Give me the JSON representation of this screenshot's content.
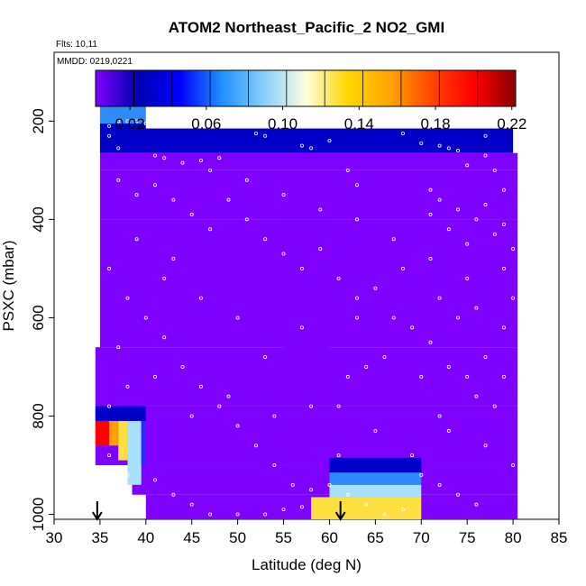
{
  "chart_data": {
    "type": "heatmap",
    "title": "ATOM2 Northeast_Pacific_2 NO2_GMI",
    "flights_label": "Flts: 10,11",
    "dates_label": "MMDD: 0219,0221",
    "xlabel": "Latitude (deg N)",
    "ylabel": "PSXC (mbar)",
    "xlim": [
      30,
      85
    ],
    "ylim": [
      1010,
      60
    ],
    "y_reversed": true,
    "xticks": [
      "30",
      "35",
      "40",
      "45",
      "50",
      "55",
      "60",
      "65",
      "70",
      "75",
      "80",
      "85"
    ],
    "xtick_values": [
      30,
      35,
      40,
      45,
      50,
      55,
      60,
      65,
      70,
      75,
      80,
      85
    ],
    "yticks": [
      "200",
      "400",
      "600",
      "800",
      "1000"
    ],
    "ytick_values": [
      200,
      400,
      600,
      800,
      1000
    ],
    "colorbar": {
      "min": 0.002,
      "max": 0.222,
      "tick_labels": [
        "0.02",
        "0.06",
        "0.10",
        "0.14",
        "0.18",
        "0.22"
      ],
      "tick_values": [
        0.02,
        0.06,
        0.1,
        0.14,
        0.18,
        0.22
      ],
      "boundaries": [
        0.002,
        0.022,
        0.042,
        0.062,
        0.082,
        0.102,
        0.122,
        0.142,
        0.162,
        0.182,
        0.202,
        0.222
      ],
      "colors": [
        "#7f00ff",
        "#0000c8",
        "#2828ff",
        "#2c8cff",
        "#a8e0ff",
        "#ffffd0",
        "#ffe040",
        "#ffa000",
        "#ff5000",
        "#ff0000",
        "#b00000"
      ]
    },
    "field_cells": [
      {
        "lat": [
          35.0,
          40.0
        ],
        "p": [
          165,
          205
        ],
        "v": 0.07
      },
      {
        "lat": [
          35.0,
          40.0
        ],
        "p": [
          205,
          215
        ],
        "v": 0.03
      },
      {
        "lat": [
          35.0,
          80.0
        ],
        "p": [
          215,
          265
        ],
        "v": 0.026
      },
      {
        "lat": [
          35.0,
          80.5
        ],
        "p": [
          265,
          300
        ],
        "v": 0.02
      },
      {
        "lat": [
          35.0,
          80.5
        ],
        "p": [
          300,
          400
        ],
        "v": 0.014
      },
      {
        "lat": [
          35.0,
          80.5
        ],
        "p": [
          400,
          660
        ],
        "v": 0.009
      },
      {
        "lat": [
          34.5,
          80.5
        ],
        "p": [
          660,
          780
        ],
        "v": 0.011
      },
      {
        "lat": [
          34.5,
          80.5
        ],
        "p": [
          780,
          900
        ],
        "v": 0.009
      },
      {
        "lat": [
          38.5,
          80.5
        ],
        "p": [
          900,
          960
        ],
        "v": 0.013
      },
      {
        "lat": [
          40.0,
          80.5
        ],
        "p": [
          960,
          1010
        ],
        "v": 0.015
      },
      {
        "lat": [
          34.5,
          40.0
        ],
        "p": [
          780,
          810
        ],
        "v": 0.03
      },
      {
        "lat": [
          55.0,
          60.0
        ],
        "p": [
          400,
          700
        ],
        "v": 0.02
      },
      {
        "lat": [
          60.0,
          70.0
        ],
        "p": [
          885,
          915
        ],
        "v": 0.03
      },
      {
        "lat": [
          60.0,
          70.0
        ],
        "p": [
          915,
          940
        ],
        "v": 0.062
      },
      {
        "lat": [
          60.0,
          70.0
        ],
        "p": [
          940,
          965
        ],
        "v": 0.095
      },
      {
        "lat": [
          58.0,
          70.0
        ],
        "p": [
          965,
          1010
        ],
        "v": 0.14
      },
      {
        "lat": [
          34.5,
          36.0
        ],
        "p": [
          810,
          860
        ],
        "v": 0.2
      },
      {
        "lat": [
          36.0,
          37.0
        ],
        "p": [
          810,
          860
        ],
        "v": 0.16
      },
      {
        "lat": [
          37.0,
          38.0
        ],
        "p": [
          810,
          890
        ],
        "v": 0.13
      },
      {
        "lat": [
          38.0,
          39.5
        ],
        "p": [
          810,
          940
        ],
        "v": 0.09
      },
      {
        "lat": [
          39.5,
          40.0
        ],
        "p": [
          810,
          900
        ],
        "v": 0.05
      }
    ],
    "arrows_lat": [
      34.7,
      61.2
    ],
    "sample_points": [
      [
        36,
        210
      ],
      [
        37,
        200
      ],
      [
        38,
        200
      ],
      [
        39,
        200
      ],
      [
        40,
        205
      ],
      [
        36,
        230
      ],
      [
        37,
        255
      ],
      [
        41,
        270
      ],
      [
        42,
        275
      ],
      [
        44,
        285
      ],
      [
        46,
        280
      ],
      [
        48,
        275
      ],
      [
        52,
        225
      ],
      [
        53,
        230
      ],
      [
        57,
        250
      ],
      [
        58,
        255
      ],
      [
        60,
        240
      ],
      [
        62,
        300
      ],
      [
        63,
        330
      ],
      [
        65,
        200
      ],
      [
        66,
        200
      ],
      [
        68,
        225
      ],
      [
        70,
        245
      ],
      [
        73,
        255
      ],
      [
        74,
        260
      ],
      [
        76,
        210
      ],
      [
        77,
        270
      ],
      [
        78,
        300
      ],
      [
        37,
        320
      ],
      [
        39,
        350
      ],
      [
        41,
        330
      ],
      [
        43,
        360
      ],
      [
        45,
        390
      ],
      [
        47,
        420
      ],
      [
        49,
        360
      ],
      [
        51,
        400
      ],
      [
        53,
        440
      ],
      [
        55,
        470
      ],
      [
        57,
        500
      ],
      [
        59,
        460
      ],
      [
        61,
        520
      ],
      [
        63,
        560
      ],
      [
        65,
        540
      ],
      [
        67,
        600
      ],
      [
        69,
        620
      ],
      [
        71,
        650
      ],
      [
        73,
        700
      ],
      [
        75,
        720
      ],
      [
        77,
        680
      ],
      [
        79,
        620
      ],
      [
        36,
        500
      ],
      [
        38,
        560
      ],
      [
        40,
        600
      ],
      [
        42,
        640
      ],
      [
        44,
        700
      ],
      [
        46,
        740
      ],
      [
        48,
        780
      ],
      [
        50,
        820
      ],
      [
        52,
        860
      ],
      [
        54,
        900
      ],
      [
        56,
        940
      ],
      [
        58,
        950
      ],
      [
        60,
        940
      ],
      [
        61,
        880
      ],
      [
        62,
        960
      ],
      [
        64,
        980
      ],
      [
        66,
        1000
      ],
      [
        68,
        990
      ],
      [
        70,
        920
      ],
      [
        72,
        940
      ],
      [
        74,
        960
      ],
      [
        76,
        980
      ],
      [
        36,
        880
      ],
      [
        38,
        920
      ],
      [
        41,
        930
      ],
      [
        43,
        960
      ],
      [
        45,
        980
      ],
      [
        47,
        1000
      ],
      [
        50,
        1000
      ],
      [
        53,
        1000
      ],
      [
        55,
        990
      ],
      [
        57,
        985
      ],
      [
        66,
        200
      ],
      [
        67,
        200
      ],
      [
        69,
        200
      ],
      [
        71,
        340
      ],
      [
        72,
        360
      ],
      [
        74,
        380
      ],
      [
        76,
        400
      ],
      [
        78,
        430
      ],
      [
        80,
        460
      ],
      [
        79,
        500
      ],
      [
        75,
        520
      ],
      [
        71,
        480
      ],
      [
        67,
        440
      ],
      [
        63,
        400
      ],
      [
        59,
        380
      ],
      [
        55,
        350
      ],
      [
        51,
        320
      ],
      [
        47,
        300
      ],
      [
        43,
        480
      ],
      [
        39,
        440
      ],
      [
        37,
        660
      ],
      [
        41,
        720
      ],
      [
        45,
        800
      ],
      [
        49,
        760
      ],
      [
        53,
        680
      ],
      [
        57,
        620
      ],
      [
        61,
        780
      ],
      [
        65,
        830
      ],
      [
        69,
        880
      ],
      [
        73,
        830
      ],
      [
        77,
        860
      ],
      [
        80,
        900
      ],
      [
        78,
        780
      ],
      [
        74,
        600
      ],
      [
        70,
        720
      ],
      [
        66,
        680
      ],
      [
        62,
        720
      ],
      [
        58,
        780
      ],
      [
        54,
        800
      ],
      [
        50,
        600
      ],
      [
        46,
        560
      ],
      [
        42,
        520
      ],
      [
        38,
        740
      ],
      [
        36,
        780
      ],
      [
        63,
        600
      ],
      [
        64,
        700
      ],
      [
        68,
        500
      ],
      [
        72,
        560
      ],
      [
        76,
        580
      ],
      [
        79,
        340
      ],
      [
        77,
        230
      ],
      [
        75,
        290
      ],
      [
        72,
        250
      ],
      [
        71,
        390
      ],
      [
        73,
        420
      ],
      [
        75,
        450
      ],
      [
        77,
        370
      ],
      [
        79,
        410
      ],
      [
        80,
        560
      ],
      [
        79,
        720
      ],
      [
        76,
        760
      ],
      [
        72,
        800
      ]
    ]
  }
}
